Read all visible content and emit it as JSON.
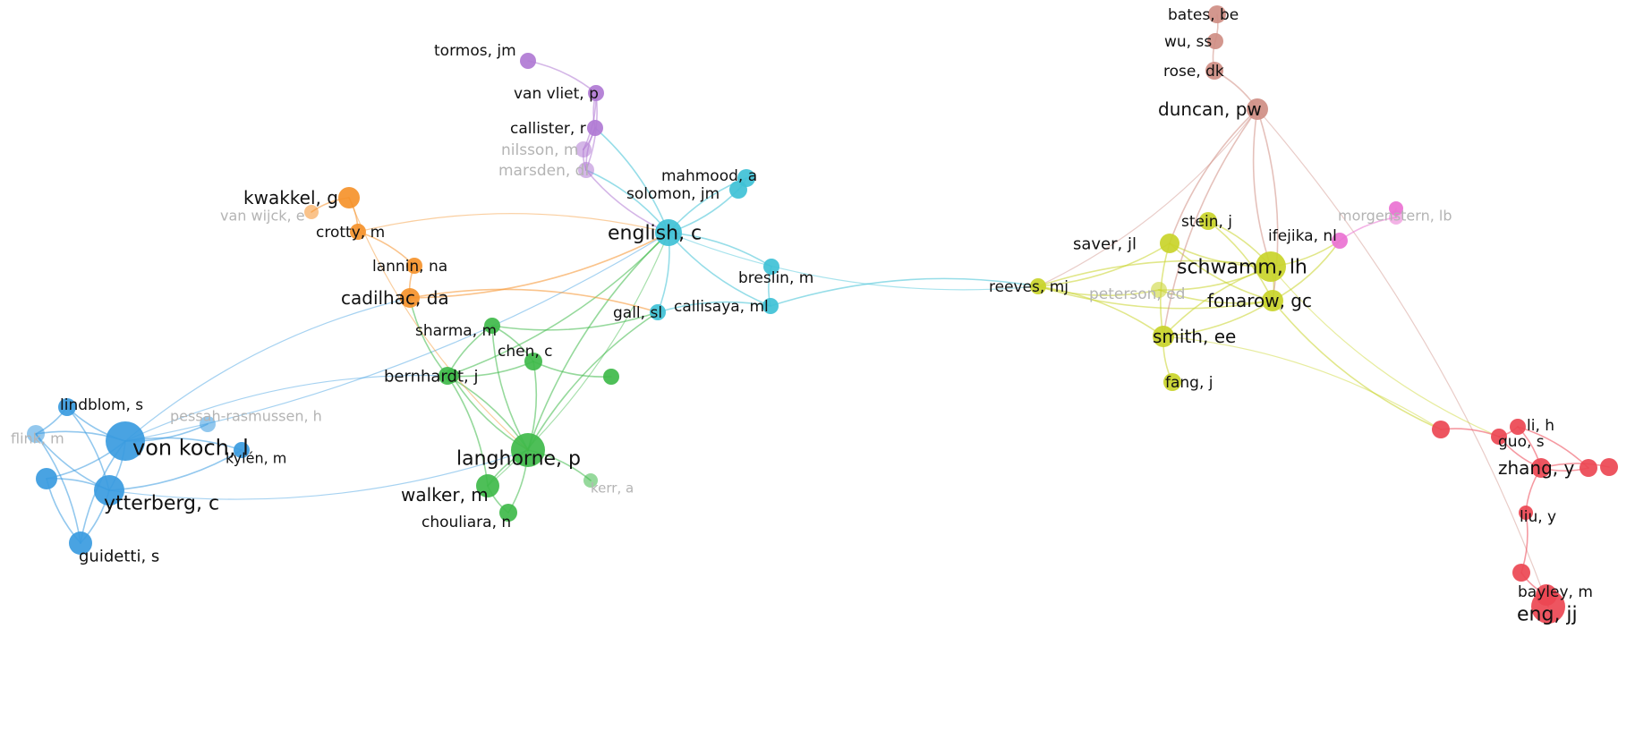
{
  "clusters": {
    "blue": {
      "color": "#3a9be0"
    },
    "green": {
      "color": "#3fba4a"
    },
    "cyan": {
      "color": "#3fc1d6"
    },
    "purple": {
      "color": "#b07ad4"
    },
    "orange": {
      "color": "#f5922b"
    },
    "yellow": {
      "color": "#c9d42a"
    },
    "brown": {
      "color": "#cf8e84"
    },
    "pink": {
      "color": "#ea72d2"
    },
    "red": {
      "color": "#ec4653"
    }
  },
  "nodes": [
    {
      "id": "vonkoch",
      "label": "von koch, l",
      "cluster": "blue"
    },
    {
      "id": "ytterberg",
      "label": "ytterberg, c",
      "cluster": "blue"
    },
    {
      "id": "guidetti",
      "label": "guidetti, s",
      "cluster": "blue"
    },
    {
      "id": "lindblom",
      "label": "lindblom, s",
      "cluster": "blue"
    },
    {
      "id": "flink",
      "label": "flink, m",
      "cluster": "blue",
      "faded": true
    },
    {
      "id": "kylen",
      "label": "kylén, m",
      "cluster": "blue"
    },
    {
      "id": "pessah",
      "label": "pessah-rasmussen, h",
      "cluster": "blue",
      "faded": true
    },
    {
      "id": "langhorne",
      "label": "langhorne, p",
      "cluster": "green"
    },
    {
      "id": "walker",
      "label": "walker, m",
      "cluster": "green"
    },
    {
      "id": "chouliara",
      "label": "chouliara, n",
      "cluster": "green"
    },
    {
      "id": "bernhardt",
      "label": "bernhardt, j",
      "cluster": "green"
    },
    {
      "id": "sharma",
      "label": "sharma, m",
      "cluster": "green"
    },
    {
      "id": "chen",
      "label": "chen, c",
      "cluster": "green"
    },
    {
      "id": "kerr",
      "label": "kerr, a",
      "cluster": "green",
      "faded": true
    },
    {
      "id": "english",
      "label": "english, c",
      "cluster": "cyan"
    },
    {
      "id": "mahmood",
      "label": "mahmood, a",
      "cluster": "cyan"
    },
    {
      "id": "solomon",
      "label": "solomon, jm",
      "cluster": "cyan"
    },
    {
      "id": "breslin",
      "label": "breslin, m",
      "cluster": "cyan"
    },
    {
      "id": "callisaya",
      "label": "callisaya, ml",
      "cluster": "cyan"
    },
    {
      "id": "gall",
      "label": "gall, sl",
      "cluster": "cyan"
    },
    {
      "id": "tormos",
      "label": "tormos, jm",
      "cluster": "purple"
    },
    {
      "id": "vanvliet",
      "label": "van vliet, p",
      "cluster": "purple"
    },
    {
      "id": "callister",
      "label": "callister, r",
      "cluster": "purple"
    },
    {
      "id": "nilsson",
      "label": "nilsson, m",
      "cluster": "purple",
      "faded": true
    },
    {
      "id": "marsden",
      "label": "marsden, dl",
      "cluster": "purple",
      "faded": true
    },
    {
      "id": "kwakkel",
      "label": "kwakkel, g",
      "cluster": "orange"
    },
    {
      "id": "vanwijck",
      "label": "van wijck, e",
      "cluster": "orange",
      "faded": true
    },
    {
      "id": "crotty",
      "label": "crotty, m",
      "cluster": "orange"
    },
    {
      "id": "lannin",
      "label": "lannin, na",
      "cluster": "orange"
    },
    {
      "id": "cadilhac",
      "label": "cadilhac, da",
      "cluster": "orange"
    },
    {
      "id": "schwamm",
      "label": "schwamm, lh",
      "cluster": "yellow"
    },
    {
      "id": "fonarow",
      "label": "fonarow, gc",
      "cluster": "yellow"
    },
    {
      "id": "smith",
      "label": "smith, ee",
      "cluster": "yellow"
    },
    {
      "id": "saver",
      "label": "saver, jl",
      "cluster": "yellow"
    },
    {
      "id": "stein",
      "label": "stein, j",
      "cluster": "yellow"
    },
    {
      "id": "reeves",
      "label": "reeves, mj",
      "cluster": "yellow"
    },
    {
      "id": "peterson",
      "label": "peterson, ed",
      "cluster": "yellow",
      "faded": true
    },
    {
      "id": "fang",
      "label": "fang, j",
      "cluster": "yellow"
    },
    {
      "id": "bates",
      "label": "bates, be",
      "cluster": "brown"
    },
    {
      "id": "wu",
      "label": "wu, ss",
      "cluster": "brown"
    },
    {
      "id": "rose",
      "label": "rose, dk",
      "cluster": "brown"
    },
    {
      "id": "duncan",
      "label": "duncan, pw",
      "cluster": "brown"
    },
    {
      "id": "ifejika",
      "label": "ifejika, nl",
      "cluster": "pink"
    },
    {
      "id": "morgenstern",
      "label": "morgenstern, lb",
      "cluster": "pink",
      "faded": true
    },
    {
      "id": "guo",
      "label": "guo, s",
      "cluster": "red"
    },
    {
      "id": "lih",
      "label": "li, h",
      "cluster": "red"
    },
    {
      "id": "zhang",
      "label": "zhang, y",
      "cluster": "red"
    },
    {
      "id": "liuy",
      "label": "liu, y",
      "cluster": "red"
    },
    {
      "id": "bayley",
      "label": "bayley, m",
      "cluster": "red"
    },
    {
      "id": "eng",
      "label": "eng, jj",
      "cluster": "red"
    },
    {
      "id": "red_a",
      "label": "",
      "cluster": "red"
    },
    {
      "id": "red_b",
      "label": "",
      "cluster": "red"
    },
    {
      "id": "red_c",
      "label": "",
      "cluster": "red"
    },
    {
      "id": "red_d",
      "label": "",
      "cluster": "red"
    },
    {
      "id": "pink_b",
      "label": "",
      "cluster": "pink"
    },
    {
      "id": "green_b",
      "label": "",
      "cluster": "green"
    },
    {
      "id": "green_c",
      "label": "",
      "cluster": "green"
    },
    {
      "id": "blue_b",
      "label": "",
      "cluster": "blue"
    }
  ],
  "edges": [
    [
      "vonkoch",
      "ytterberg"
    ],
    [
      "vonkoch",
      "guidetti"
    ],
    [
      "vonkoch",
      "lindblom"
    ],
    [
      "vonkoch",
      "flink"
    ],
    [
      "vonkoch",
      "kylen"
    ],
    [
      "vonkoch",
      "pessah"
    ],
    [
      "ytterberg",
      "guidetti"
    ],
    [
      "ytterberg",
      "lindblom"
    ],
    [
      "ytterberg",
      "flink"
    ],
    [
      "guidetti",
      "flink"
    ],
    [
      "lindblom",
      "flink"
    ],
    [
      "ytterberg",
      "kylen"
    ],
    [
      "vonkoch",
      "blue_b"
    ],
    [
      "ytterberg",
      "blue_b"
    ],
    [
      "guidetti",
      "blue_b"
    ],
    [
      "vonkoch",
      "english"
    ],
    [
      "vonkoch",
      "bernhardt"
    ],
    [
      "ytterberg",
      "langhorne"
    ],
    [
      "vonkoch",
      "cadilhac"
    ],
    [
      "langhorne",
      "walker"
    ],
    [
      "langhorne",
      "chouliara"
    ],
    [
      "langhorne",
      "bernhardt"
    ],
    [
      "langhorne",
      "sharma"
    ],
    [
      "langhorne",
      "chen"
    ],
    [
      "langhorne",
      "kerr"
    ],
    [
      "walker",
      "chouliara"
    ],
    [
      "bernhardt",
      "sharma"
    ],
    [
      "bernhardt",
      "chen"
    ],
    [
      "sharma",
      "chen"
    ],
    [
      "walker",
      "bernhardt"
    ],
    [
      "langhorne",
      "green_b"
    ],
    [
      "chen",
      "green_c"
    ],
    [
      "langhorne",
      "gall"
    ],
    [
      "bernhardt",
      "english"
    ],
    [
      "bernhardt",
      "cadilhac"
    ],
    [
      "sharma",
      "gall"
    ],
    [
      "langhorne",
      "english"
    ],
    [
      "walker",
      "english"
    ],
    [
      "english",
      "mahmood"
    ],
    [
      "english",
      "solomon"
    ],
    [
      "english",
      "breslin"
    ],
    [
      "english",
      "callisaya"
    ],
    [
      "english",
      "gall"
    ],
    [
      "english",
      "marsden"
    ],
    [
      "mahmood",
      "solomon"
    ],
    [
      "breslin",
      "callisaya"
    ],
    [
      "gall",
      "callisaya"
    ],
    [
      "english",
      "callister"
    ],
    [
      "tormos",
      "vanvliet"
    ],
    [
      "vanvliet",
      "callister"
    ],
    [
      "callister",
      "nilsson"
    ],
    [
      "nilsson",
      "marsden"
    ],
    [
      "vanvliet",
      "nilsson"
    ],
    [
      "callister",
      "marsden"
    ],
    [
      "vanvliet",
      "marsden"
    ],
    [
      "marsden",
      "english"
    ],
    [
      "kwakkel",
      "crotty"
    ],
    [
      "kwakkel",
      "vanwijck"
    ],
    [
      "crotty",
      "lannin"
    ],
    [
      "lannin",
      "cadilhac"
    ],
    [
      "cadilhac",
      "gall"
    ],
    [
      "cadilhac",
      "english"
    ],
    [
      "crotty",
      "english"
    ],
    [
      "kwakkel",
      "langhorne"
    ],
    [
      "callisaya",
      "reeves"
    ],
    [
      "english",
      "reeves"
    ],
    [
      "reeves",
      "schwamm"
    ],
    [
      "reeves",
      "fonarow"
    ],
    [
      "reeves",
      "smith"
    ],
    [
      "reeves",
      "saver"
    ],
    [
      "schwamm",
      "fonarow"
    ],
    [
      "schwamm",
      "smith"
    ],
    [
      "schwamm",
      "saver"
    ],
    [
      "schwamm",
      "stein"
    ],
    [
      "fonarow",
      "smith"
    ],
    [
      "saver",
      "fonarow"
    ],
    [
      "stein",
      "fonarow"
    ],
    [
      "smith",
      "fang"
    ],
    [
      "schwamm",
      "peterson"
    ],
    [
      "peterson",
      "fonarow"
    ],
    [
      "smith",
      "saver"
    ],
    [
      "reeves",
      "peterson"
    ],
    [
      "bates",
      "wu"
    ],
    [
      "wu",
      "rose"
    ],
    [
      "rose",
      "duncan"
    ],
    [
      "duncan",
      "schwamm"
    ],
    [
      "duncan",
      "fonarow"
    ],
    [
      "duncan",
      "smith"
    ],
    [
      "duncan",
      "reeves"
    ],
    [
      "duncan",
      "saver"
    ],
    [
      "duncan",
      "eng"
    ],
    [
      "schwamm",
      "ifejika"
    ],
    [
      "ifejika",
      "morgenstern"
    ],
    [
      "fonarow",
      "ifejika"
    ],
    [
      "morgenstern",
      "pink_b"
    ],
    [
      "fonarow",
      "red_a"
    ],
    [
      "smith",
      "red_a"
    ],
    [
      "schwamm",
      "guo"
    ],
    [
      "red_a",
      "guo"
    ],
    [
      "guo",
      "lih"
    ],
    [
      "lih",
      "zhang"
    ],
    [
      "zhang",
      "red_b"
    ],
    [
      "zhang",
      "red_c"
    ],
    [
      "zhang",
      "liuy"
    ],
    [
      "liuy",
      "red_d"
    ],
    [
      "red_d",
      "bayley"
    ],
    [
      "bayley",
      "eng"
    ],
    [
      "guo",
      "zhang"
    ],
    [
      "lih",
      "red_b"
    ]
  ]
}
